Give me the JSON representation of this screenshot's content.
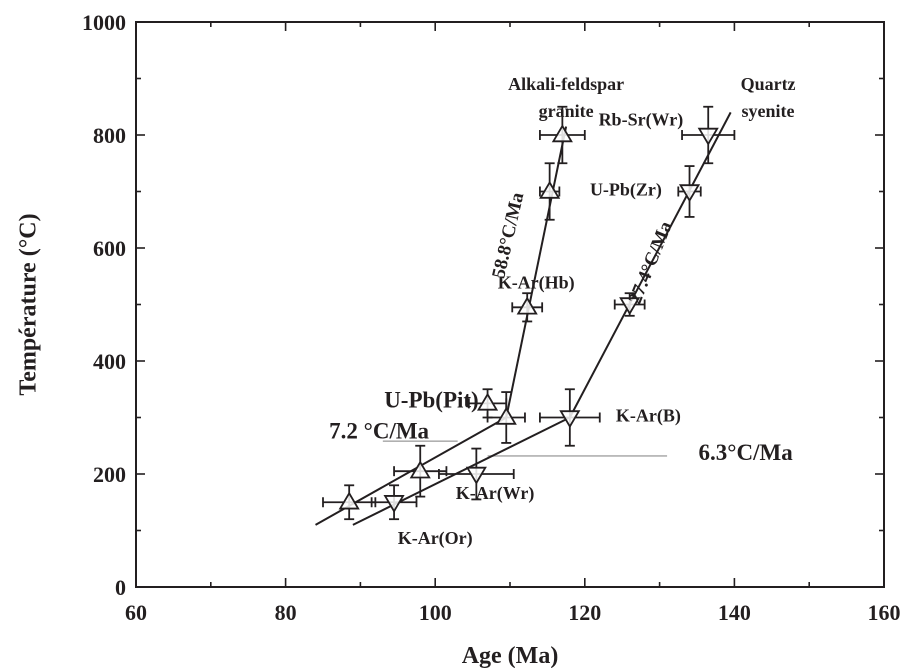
{
  "chart_data": {
    "type": "scatter",
    "xlabel": "Age (Ma)",
    "ylabel": "Température (°C)",
    "xlim": [
      60,
      160
    ],
    "ylim": [
      0,
      1000
    ],
    "x_ticks": [
      60,
      80,
      100,
      120,
      140,
      160
    ],
    "y_ticks": [
      0,
      200,
      400,
      600,
      800,
      1000
    ],
    "grid": false,
    "series": [
      {
        "name": "Alkali-feldspar granite",
        "marker": "triangle-up",
        "points": [
          {
            "x": 88.5,
            "y": 150,
            "xerr": 3.5,
            "yerr": 30
          },
          {
            "x": 98,
            "y": 205,
            "xerr": 3.5,
            "yerr": 45
          },
          {
            "x": 107,
            "y": 325,
            "xerr": 2.5,
            "yerr": 25
          },
          {
            "x": 109.5,
            "y": 300,
            "xerr": 2.5,
            "yerr": 45
          },
          {
            "x": 112.3,
            "y": 495,
            "xerr": 2,
            "yerr": 25
          },
          {
            "x": 115.3,
            "y": 700,
            "xerr": 1.3,
            "yerr": 50
          },
          {
            "x": 117,
            "y": 800,
            "xerr": 3,
            "yerr": 50
          }
        ],
        "fit_lines": [
          {
            "from": [
              84,
              110
            ],
            "to": [
              109.5,
              300
            ]
          },
          {
            "from": [
              109.5,
              300
            ],
            "to": [
              117.5,
              815
            ]
          }
        ]
      },
      {
        "name": "Quartz syenite",
        "marker": "triangle-down",
        "points": [
          {
            "x": 94.5,
            "y": 150,
            "xerr": 3,
            "yerr": 30
          },
          {
            "x": 105.5,
            "y": 200,
            "xerr": 5,
            "yerr": 45
          },
          {
            "x": 118,
            "y": 300,
            "xerr": 4,
            "yerr": 50
          },
          {
            "x": 126,
            "y": 500,
            "xerr": 2,
            "yerr": 20
          },
          {
            "x": 134,
            "y": 700,
            "xerr": 1.5,
            "yerr": 45
          },
          {
            "x": 136.5,
            "y": 800,
            "xerr": 3.5,
            "yerr": 50
          }
        ],
        "fit_lines": [
          {
            "from": [
              89,
              110
            ],
            "to": [
              118,
              300
            ]
          },
          {
            "from": [
              118,
              300
            ],
            "to": [
              139.5,
              840
            ]
          }
        ]
      }
    ],
    "annotations": [
      {
        "text": "Alkali-feldspar",
        "x": 117.5,
        "y": 880,
        "style": "ann"
      },
      {
        "text": "granite",
        "x": 117.5,
        "y": 832,
        "style": "ann"
      },
      {
        "text": "Quartz",
        "x": 144.5,
        "y": 880,
        "style": "ann"
      },
      {
        "text": "syenite",
        "x": 144.5,
        "y": 832,
        "style": "ann"
      },
      {
        "text": "Rb-Sr(Wr)",
        "x": 127.5,
        "y": 817,
        "style": "ann"
      },
      {
        "text": "U-Pb(Zr)",
        "x": 125.5,
        "y": 693,
        "style": "ann"
      },
      {
        "text": "K-Ar(Hb)",
        "x": 113.5,
        "y": 528,
        "style": "ann"
      },
      {
        "text": "U-Pb(Pit)",
        "x": 99.5,
        "y": 318,
        "style": "ann-big"
      },
      {
        "text": "K-Ar(B)",
        "x": 128.5,
        "y": 293,
        "style": "ann"
      },
      {
        "text": "K-Ar(Wr)",
        "x": 108,
        "y": 156,
        "style": "ann"
      },
      {
        "text": "K-Ar(Or)",
        "x": 100,
        "y": 76,
        "style": "ann"
      },
      {
        "text": "7.2 °C/Ma",
        "x": 92.5,
        "y": 263,
        "style": "ann-big"
      },
      {
        "text": "6.3°C/Ma",
        "x": 141.5,
        "y": 225,
        "style": "ann-big"
      },
      {
        "text": "58.8°C/Ma",
        "x": 110.5,
        "y": 620,
        "style": "rate",
        "rotate": -77
      },
      {
        "text": "27.4°C/Ma",
        "x": 129.5,
        "y": 570,
        "style": "rate",
        "rotate": -68
      }
    ],
    "leader_lines": [
      {
        "from": [
          93,
          258
        ],
        "to": [
          103,
          258
        ]
      },
      {
        "from": [
          107,
          232
        ],
        "to": [
          131,
          232
        ]
      }
    ]
  }
}
